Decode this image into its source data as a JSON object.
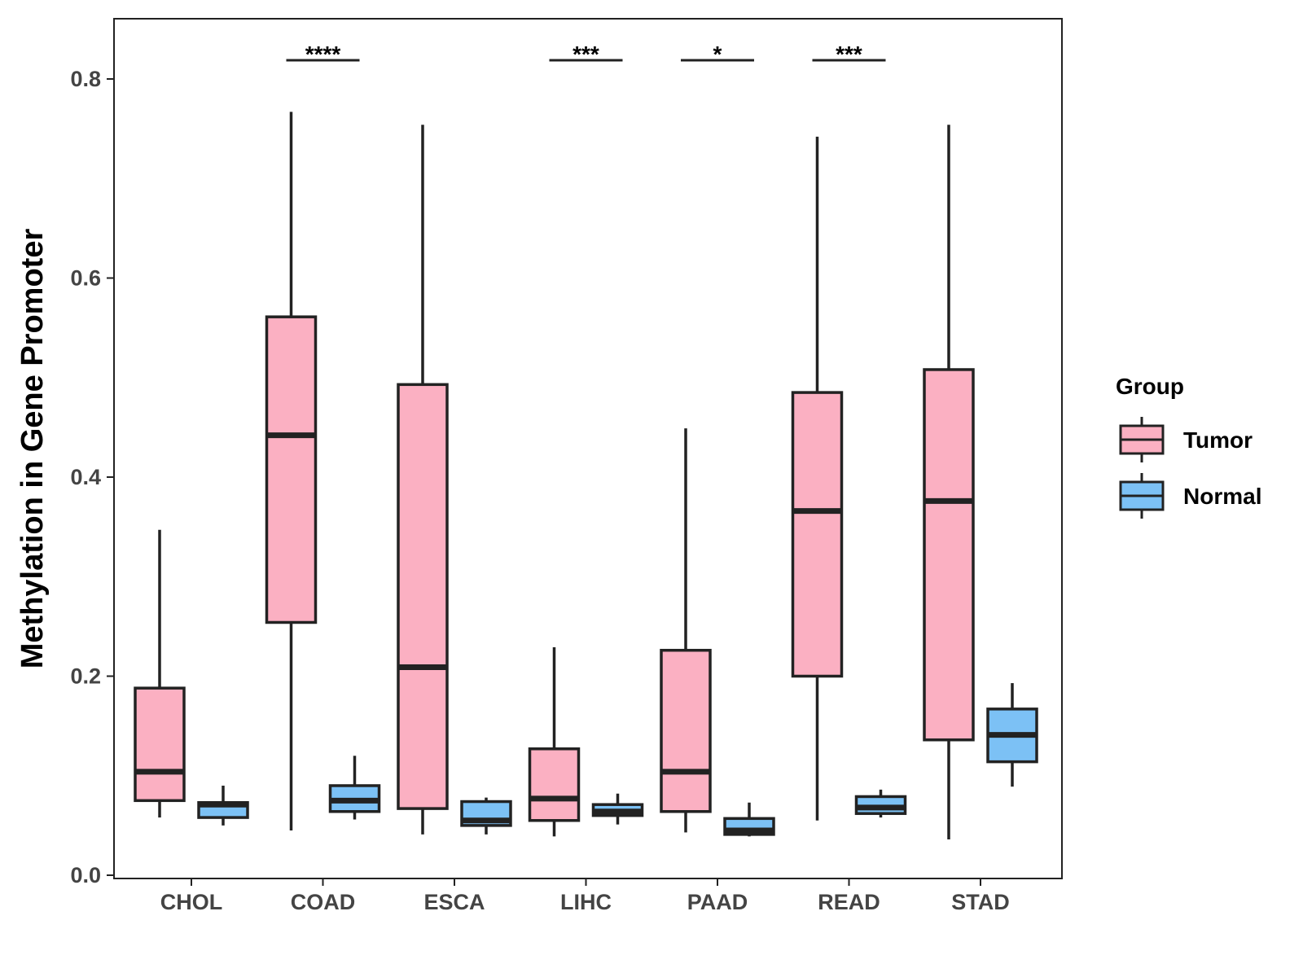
{
  "chart_data": {
    "type": "boxplot",
    "title": "",
    "xlabel": "",
    "ylabel": "Methylation in Gene Promoter",
    "ylim": [
      0,
      0.86
    ],
    "yticks": [
      0.0,
      0.2,
      0.4,
      0.6,
      0.8
    ],
    "ytick_labels": [
      "0.0",
      "0.2",
      "0.4",
      "0.6",
      "0.8"
    ],
    "categories": [
      "CHOL",
      "COAD",
      "ESCA",
      "LIHC",
      "PAAD",
      "READ",
      "STAD"
    ],
    "legend": {
      "title": "Group",
      "position": "right",
      "entries": [
        "Tumor",
        "Normal"
      ]
    },
    "series": [
      {
        "name": "Tumor",
        "color": "#FBB0C2",
        "boxes": [
          {
            "category": "CHOL",
            "min": 0.058,
            "q1": 0.075,
            "median": 0.104,
            "q3": 0.188,
            "max": 0.347
          },
          {
            "category": "COAD",
            "min": 0.045,
            "q1": 0.254,
            "median": 0.442,
            "q3": 0.561,
            "max": 0.767
          },
          {
            "category": "ESCA",
            "min": 0.041,
            "q1": 0.067,
            "median": 0.209,
            "q3": 0.493,
            "max": 0.754
          },
          {
            "category": "LIHC",
            "min": 0.039,
            "q1": 0.055,
            "median": 0.077,
            "q3": 0.127,
            "max": 0.229
          },
          {
            "category": "PAAD",
            "min": 0.043,
            "q1": 0.064,
            "median": 0.104,
            "q3": 0.226,
            "max": 0.449
          },
          {
            "category": "READ",
            "min": 0.055,
            "q1": 0.2,
            "median": 0.366,
            "q3": 0.485,
            "max": 0.742
          },
          {
            "category": "STAD",
            "min": 0.036,
            "q1": 0.136,
            "median": 0.376,
            "q3": 0.508,
            "max": 0.754
          }
        ]
      },
      {
        "name": "Normal",
        "color": "#7CC1F5",
        "boxes": [
          {
            "category": "CHOL",
            "min": 0.05,
            "q1": 0.058,
            "median": 0.071,
            "q3": 0.073,
            "max": 0.09
          },
          {
            "category": "COAD",
            "min": 0.056,
            "q1": 0.064,
            "median": 0.075,
            "q3": 0.09,
            "max": 0.12
          },
          {
            "category": "ESCA",
            "min": 0.041,
            "q1": 0.05,
            "median": 0.055,
            "q3": 0.074,
            "max": 0.078
          },
          {
            "category": "LIHC",
            "min": 0.051,
            "q1": 0.06,
            "median": 0.064,
            "q3": 0.071,
            "max": 0.082
          },
          {
            "category": "PAAD",
            "min": 0.039,
            "q1": 0.041,
            "median": 0.045,
            "q3": 0.057,
            "max": 0.073
          },
          {
            "category": "READ",
            "min": 0.058,
            "q1": 0.062,
            "median": 0.068,
            "q3": 0.079,
            "max": 0.086
          },
          {
            "category": "STAD",
            "min": 0.089,
            "q1": 0.114,
            "median": 0.141,
            "q3": 0.167,
            "max": 0.193
          }
        ]
      }
    ],
    "significance": [
      {
        "category": "COAD",
        "label": "****"
      },
      {
        "category": "LIHC",
        "label": "***"
      },
      {
        "category": "PAAD",
        "label": "*"
      },
      {
        "category": "READ",
        "label": "***"
      }
    ]
  }
}
